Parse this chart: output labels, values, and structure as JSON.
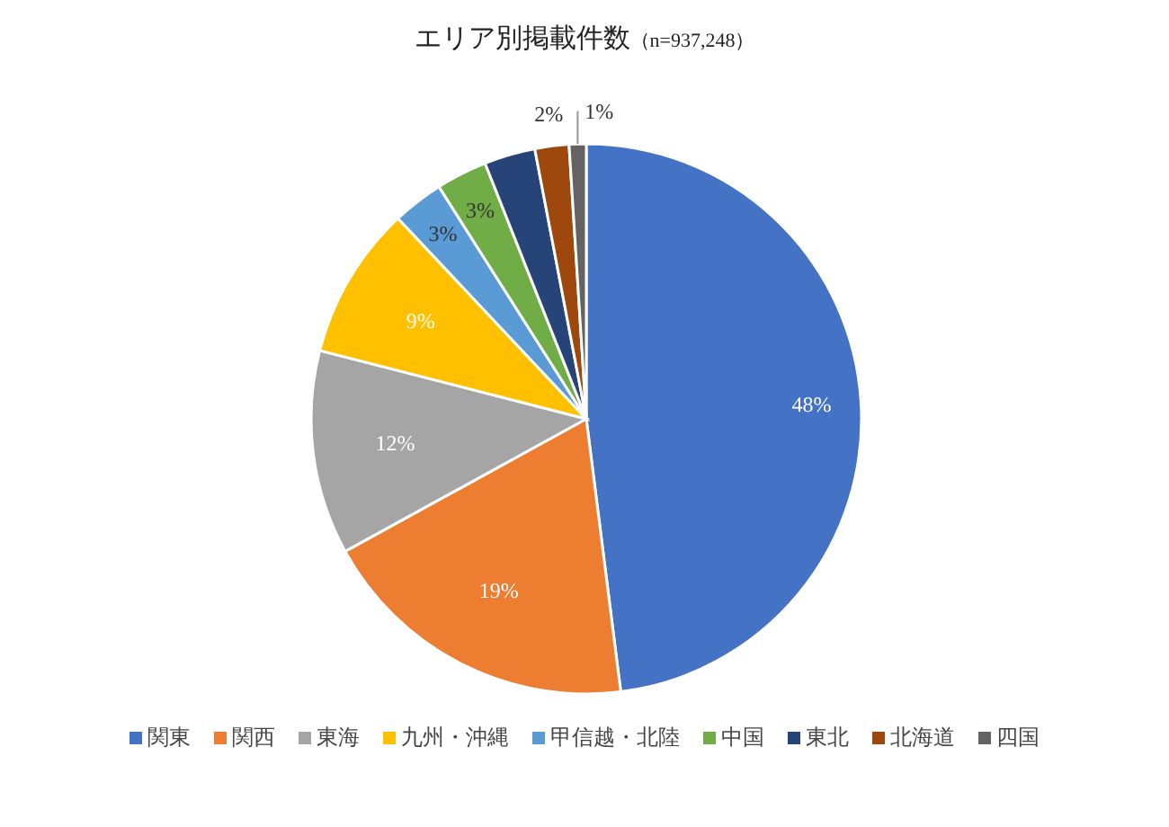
{
  "chart_data": {
    "type": "pie",
    "title": "エリア別掲載件数",
    "subtitle": "（n=937,248）",
    "categories": [
      "関東",
      "関西",
      "東海",
      "九州・沖縄",
      "甲信越・北陸",
      "中国",
      "東北",
      "北海道",
      "四国"
    ],
    "values": [
      48,
      19,
      12,
      9,
      3,
      3,
      3,
      2,
      1
    ],
    "colors": [
      "#4472c4",
      "#ed7d31",
      "#a5a5a5",
      "#ffc000",
      "#5b9bd5",
      "#70ad47",
      "#264478",
      "#9e480e",
      "#636363"
    ],
    "value_labels": [
      "48%",
      "19%",
      "12%",
      "9%",
      "3%",
      "3%",
      null,
      "2%",
      "1%"
    ],
    "legend": "bottom"
  }
}
